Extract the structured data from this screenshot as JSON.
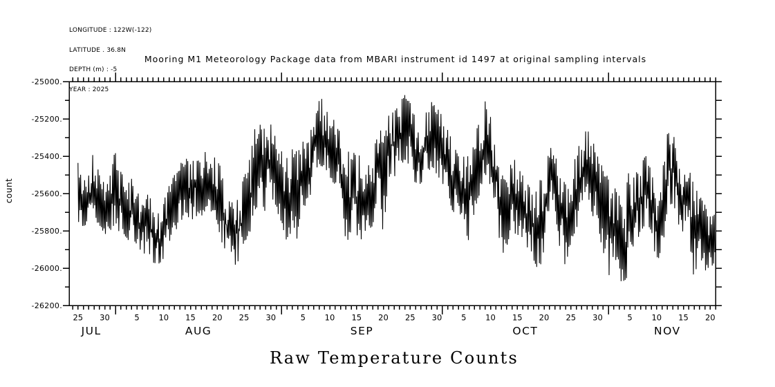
{
  "header": {
    "info_lines": [
      "LONGITUDE : 122W(-122)",
      "LATITUDE . 36.8N",
      "DEPTH (m) : -5",
      "YEAR : 2025"
    ],
    "title": "Mooring M1 Meteorology Package data from MBARI instrument id 1497 at original sampling intervals"
  },
  "footer": {
    "title": "Raw Temperature Counts"
  },
  "chart_data": {
    "type": "line",
    "title": "Mooring M1 Meteorology Package data from MBARI instrument id 1497 at original sampling intervals",
    "xlabel": "",
    "ylabel": "count",
    "ylim": [
      -26200,
      -25000
    ],
    "grid": false,
    "legend": null,
    "colors": {
      "line": "#000000",
      "background": "#ffffff",
      "text": "#000000"
    },
    "y_axis": {
      "major_tick_values": [
        -25000,
        -25200,
        -25400,
        -25600,
        -25800,
        -26000,
        -26200
      ],
      "major_tick_labels": [
        "-25000.",
        "-25200.",
        "-25400.",
        "-25600.",
        "-25800.",
        "-26000.",
        "-26200."
      ],
      "minor_tick_values": [
        -25100,
        -25300,
        -25500,
        -25700,
        -25900,
        -26100
      ]
    },
    "x_axis": {
      "unit": "days",
      "start_date": "2025-07-24",
      "end_date": "2025-11-21",
      "minor_tick_every_days": 1,
      "month_start_days": [
        8,
        39,
        69,
        100
      ],
      "day_tick_labels": [
        {
          "d": 1,
          "label": "25"
        },
        {
          "d": 6,
          "label": "30"
        },
        {
          "d": 12,
          "label": "5"
        },
        {
          "d": 17,
          "label": "10"
        },
        {
          "d": 22,
          "label": "15"
        },
        {
          "d": 27,
          "label": "20"
        },
        {
          "d": 32,
          "label": "25"
        },
        {
          "d": 37,
          "label": "30"
        },
        {
          "d": 43,
          "label": "5"
        },
        {
          "d": 48,
          "label": "10"
        },
        {
          "d": 53,
          "label": "15"
        },
        {
          "d": 58,
          "label": "20"
        },
        {
          "d": 63,
          "label": "25"
        },
        {
          "d": 68,
          "label": "30"
        },
        {
          "d": 73,
          "label": "5"
        },
        {
          "d": 78,
          "label": "10"
        },
        {
          "d": 83,
          "label": "15"
        },
        {
          "d": 88,
          "label": "20"
        },
        {
          "d": 93,
          "label": "25"
        },
        {
          "d": 98,
          "label": "30"
        },
        {
          "d": 104,
          "label": "5"
        },
        {
          "d": 109,
          "label": "10"
        },
        {
          "d": 114,
          "label": "15"
        },
        {
          "d": 119,
          "label": "20"
        }
      ],
      "month_labels": [
        {
          "d": 3.5,
          "label": "JUL"
        },
        {
          "d": 23.5,
          "label": "AUG"
        },
        {
          "d": 54,
          "label": "SEP"
        },
        {
          "d": 84.5,
          "label": "OCT"
        },
        {
          "d": 111,
          "label": "NOV"
        }
      ]
    },
    "series": {
      "name": "raw temperature counts",
      "representation": "daily high/low envelope of the noisy raw-count trace, read from the plot; day 1 = 2025-07-25, one entry per day through 2025-11-20",
      "first_day": "2025-07-25",
      "last_day": "2025-11-20",
      "envelope_hi": [
        -25430,
        -25545,
        -25480,
        -25365,
        -25480,
        -25545,
        -25470,
        -25365,
        -25480,
        -25545,
        -25520,
        -25580,
        -25640,
        -25600,
        -25650,
        -25690,
        -25640,
        -25560,
        -25500,
        -25440,
        -25400,
        -25440,
        -25400,
        -25430,
        -25360,
        -25390,
        -25420,
        -25480,
        -25600,
        -25650,
        -25610,
        -25500,
        -25420,
        -25250,
        -25230,
        -25260,
        -25210,
        -25300,
        -25330,
        -25400,
        -25360,
        -25360,
        -25320,
        -25310,
        -25200,
        -25090,
        -25095,
        -25110,
        -25200,
        -25270,
        -25360,
        -25390,
        -25370,
        -25420,
        -25420,
        -25420,
        -25230,
        -25280,
        -25180,
        -25160,
        -25110,
        -25070,
        -25110,
        -25190,
        -25260,
        -25160,
        -25110,
        -25140,
        -25170,
        -25250,
        -25320,
        -25400,
        -25400,
        -25400,
        -25300,
        -25200,
        -25100,
        -25190,
        -25320,
        -25490,
        -25540,
        -25390,
        -25450,
        -25500,
        -25550,
        -25600,
        -25550,
        -25460,
        -25310,
        -25360,
        -25500,
        -25550,
        -25460,
        -25400,
        -25280,
        -25250,
        -25310,
        -25400,
        -25460,
        -25520,
        -25560,
        -25610,
        -25650,
        -25430,
        -25510,
        -25410,
        -25400,
        -25460,
        -25600,
        -25510,
        -25260,
        -25245,
        -25450,
        -25510,
        -25465,
        -25560,
        -25610,
        -25660,
        -25710
      ],
      "envelope_lo": [
        -25770,
        -25800,
        -25720,
        -25720,
        -25780,
        -25820,
        -25800,
        -25760,
        -25830,
        -25860,
        -25830,
        -25890,
        -25940,
        -25900,
        -25970,
        -25985,
        -25950,
        -25870,
        -25810,
        -25760,
        -25710,
        -25760,
        -25720,
        -25740,
        -25680,
        -25720,
        -25760,
        -25890,
        -25960,
        -26000,
        -25960,
        -25920,
        -25820,
        -25700,
        -25660,
        -25700,
        -25640,
        -25700,
        -25760,
        -25860,
        -25790,
        -25860,
        -25700,
        -25650,
        -25540,
        -25450,
        -25460,
        -25510,
        -25560,
        -25630,
        -25860,
        -25830,
        -25860,
        -25860,
        -25790,
        -25780,
        -25600,
        -25820,
        -25520,
        -25520,
        -25470,
        -25420,
        -25470,
        -25550,
        -25590,
        -25500,
        -25460,
        -25500,
        -25540,
        -25620,
        -25700,
        -25700,
        -25780,
        -25860,
        -25700,
        -25600,
        -25500,
        -25560,
        -25680,
        -25940,
        -25900,
        -25760,
        -25850,
        -25850,
        -25900,
        -25950,
        -26030,
        -25900,
        -25710,
        -25760,
        -25900,
        -25990,
        -25860,
        -25800,
        -25650,
        -25610,
        -25710,
        -25800,
        -25900,
        -26060,
        -25960,
        -26010,
        -26170,
        -25860,
        -25910,
        -25810,
        -25760,
        -25810,
        -25970,
        -25910,
        -25710,
        -25660,
        -25760,
        -25810,
        -25810,
        -26090,
        -25910,
        -26040,
        -25990
      ]
    }
  }
}
